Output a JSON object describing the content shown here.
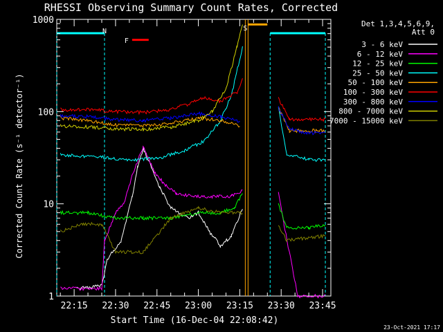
{
  "chart_data": {
    "type": "line",
    "title": "RHESSI Observing Summary Count Rates, Corrected",
    "xlabel": "Start Time (16-Dec-04 22:08:42)",
    "ylabel": "Corrected Count Rate (s⁻¹ detector⁻¹)",
    "yscale": "log",
    "xlim": [
      "22:08:42",
      "23:48:00"
    ],
    "ylim": [
      1,
      1000
    ],
    "xticks": [
      "22:15",
      "22:30",
      "22:45",
      "23:00",
      "23:15",
      "23:30",
      "23:45"
    ],
    "yticks": [
      "1",
      "10",
      "100",
      "1000"
    ],
    "legend_position": "right",
    "legend_header": [
      "Det 1,3,4,5,6,9,",
      "Att 0"
    ],
    "footer": "23-Oct-2021 17:17",
    "series": [
      {
        "name": "3 - 6 keV",
        "color": "#ffffff",
        "points": [
          [
            "22:16",
            1.2
          ],
          [
            "22:25",
            1.3
          ],
          [
            "22:27",
            2.5
          ],
          [
            "22:32",
            4
          ],
          [
            "22:36",
            12
          ],
          [
            "22:38",
            25
          ],
          [
            "22:40",
            40
          ],
          [
            "22:43",
            25
          ],
          [
            "22:46",
            15
          ],
          [
            "22:50",
            9
          ],
          [
            "22:56",
            7
          ],
          [
            "23:00",
            8
          ],
          [
            "23:04",
            5
          ],
          [
            "23:08",
            3.5
          ],
          [
            "23:12",
            4.5
          ],
          [
            "23:16",
            9
          ]
        ]
      },
      {
        "name": "6 - 12 keV",
        "color": "#ff00ff",
        "points": [
          [
            "22:10",
            1.2
          ],
          [
            "22:25",
            1.2
          ],
          [
            "22:26",
            4
          ],
          [
            "22:30",
            8
          ],
          [
            "22:33",
            10
          ],
          [
            "22:36",
            20
          ],
          [
            "22:40",
            42
          ],
          [
            "22:44",
            22
          ],
          [
            "22:48",
            16
          ],
          [
            "22:52",
            13
          ],
          [
            "22:58",
            12
          ],
          [
            "23:05",
            12
          ],
          [
            "23:12",
            12
          ],
          [
            "23:16",
            14
          ],
          [
            "23:29",
            13
          ],
          [
            "23:31",
            6
          ],
          [
            "23:36",
            1
          ],
          [
            "23:46",
            1
          ]
        ]
      },
      {
        "name": "12 - 25 keV",
        "color": "#00ff00",
        "points": [
          [
            "22:10",
            8
          ],
          [
            "22:20",
            8
          ],
          [
            "22:30",
            7
          ],
          [
            "22:40",
            7
          ],
          [
            "22:50",
            7
          ],
          [
            "23:00",
            8
          ],
          [
            "23:08",
            8
          ],
          [
            "23:13",
            9
          ],
          [
            "23:16",
            13
          ],
          [
            "23:29",
            10
          ],
          [
            "23:32",
            5.5
          ],
          [
            "23:40",
            5.5
          ],
          [
            "23:46",
            6
          ]
        ]
      },
      {
        "name": "25 - 50 keV",
        "color": "#00ffff",
        "points": [
          [
            "22:10",
            34
          ],
          [
            "22:25",
            32
          ],
          [
            "22:35",
            30
          ],
          [
            "22:45",
            31
          ],
          [
            "22:55",
            38
          ],
          [
            "23:02",
            48
          ],
          [
            "23:08",
            80
          ],
          [
            "23:12",
            150
          ],
          [
            "23:16",
            500
          ],
          [
            "23:29",
            110
          ],
          [
            "23:32",
            35
          ],
          [
            "23:40",
            30
          ],
          [
            "23:46",
            30
          ]
        ]
      },
      {
        "name": "50 - 100 keV",
        "color": "#ffa500",
        "points": [
          [
            "22:10",
            85
          ],
          [
            "22:20",
            80
          ],
          [
            "22:30",
            72
          ],
          [
            "22:40",
            70
          ],
          [
            "22:50",
            75
          ],
          [
            "23:00",
            85
          ],
          [
            "23:08",
            80
          ],
          [
            "23:15",
            70
          ],
          [
            "23:29",
            110
          ],
          [
            "23:33",
            62
          ],
          [
            "23:46",
            62
          ]
        ]
      },
      {
        "name": "100 - 300 keV",
        "color": "#ff0000",
        "points": [
          [
            "22:10",
            105
          ],
          [
            "22:20",
            105
          ],
          [
            "22:30",
            100
          ],
          [
            "22:40",
            98
          ],
          [
            "22:50",
            105
          ],
          [
            "22:56",
            120
          ],
          [
            "23:02",
            140
          ],
          [
            "23:08",
            130
          ],
          [
            "23:14",
            160
          ],
          [
            "23:16",
            220
          ],
          [
            "23:29",
            140
          ],
          [
            "23:33",
            82
          ],
          [
            "23:46",
            82
          ]
        ]
      },
      {
        "name": "300 - 800 keV",
        "color": "#0000ff",
        "points": [
          [
            "22:10",
            90
          ],
          [
            "22:20",
            88
          ],
          [
            "22:30",
            82
          ],
          [
            "22:40",
            80
          ],
          [
            "22:50",
            85
          ],
          [
            "23:00",
            95
          ],
          [
            "23:08",
            88
          ],
          [
            "23:15",
            78
          ],
          [
            "23:29",
            110
          ],
          [
            "23:33",
            65
          ],
          [
            "23:40",
            58
          ],
          [
            "23:46",
            60
          ]
        ]
      },
      {
        "name": "800 - 7000 keV",
        "color": "#d2d200",
        "points": [
          [
            "22:10",
            70
          ],
          [
            "22:20",
            68
          ],
          [
            "22:30",
            65
          ],
          [
            "22:40",
            64
          ],
          [
            "22:50",
            68
          ],
          [
            "23:00",
            80
          ],
          [
            "23:05",
            100
          ],
          [
            "23:10",
            180
          ],
          [
            "23:14",
            500
          ],
          [
            "23:16",
            900
          ]
        ]
      },
      {
        "name": "7000 - 15000 keV",
        "color": "#808000",
        "points": [
          [
            "22:10",
            5
          ],
          [
            "22:18",
            6
          ],
          [
            "22:25",
            6
          ],
          [
            "22:30",
            3
          ],
          [
            "22:40",
            3
          ],
          [
            "22:50",
            7
          ],
          [
            "23:00",
            9
          ],
          [
            "23:08",
            8
          ],
          [
            "23:16",
            8
          ],
          [
            "23:29",
            6
          ],
          [
            "23:32",
            4
          ],
          [
            "23:46",
            4.5
          ]
        ]
      }
    ],
    "annotations": [
      {
        "text": "N",
        "color": "#00ffff",
        "time": "22:26"
      },
      {
        "text": "F",
        "color": "#ff0000",
        "time": "22:34",
        "extent": [
          "22:36",
          "22:42"
        ],
        "level": 600
      },
      {
        "text": "S",
        "color": "#ffa500",
        "time": "23:17",
        "extent": [
          "23:18",
          "23:25"
        ],
        "level": 880
      }
    ],
    "night_intervals": [
      [
        "22:08:42",
        "22:26"
      ],
      [
        "23:26",
        "23:46"
      ]
    ],
    "saa_interval": [
      "23:17",
      "23:18"
    ]
  }
}
